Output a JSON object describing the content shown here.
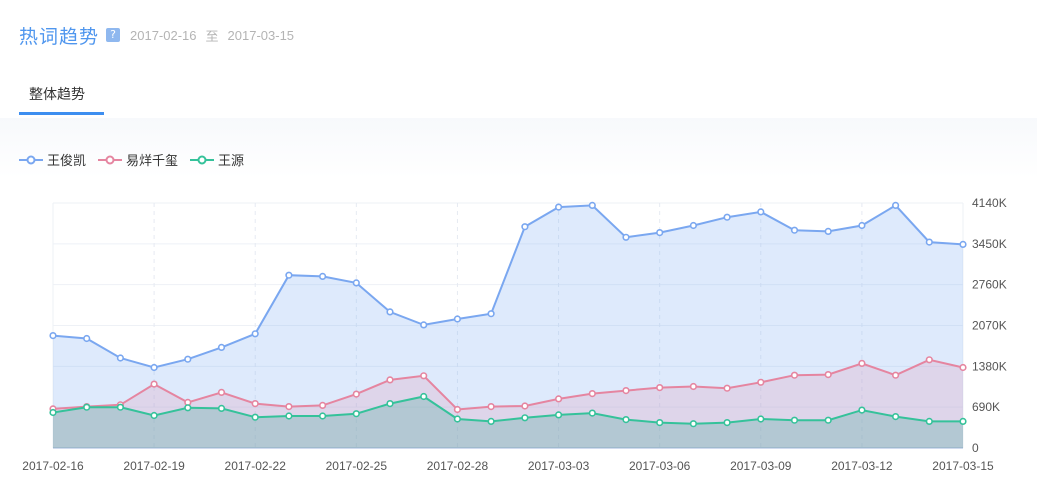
{
  "header": {
    "title": "热词趋势",
    "help_icon": "?",
    "start_date": "2017-02-16",
    "separator": "至",
    "end_date": "2017-03-15"
  },
  "tabs": [
    {
      "label": "整体趋势",
      "active": true
    }
  ],
  "colors": {
    "series": [
      "#7aa7f0",
      "#e585a0",
      "#35c29a"
    ],
    "tab_accent": "#3d8ef0",
    "title": "#4f96ee"
  },
  "chart_data": {
    "type": "area",
    "x": [
      "2017-02-16",
      "2017-02-17",
      "2017-02-18",
      "2017-02-19",
      "2017-02-20",
      "2017-02-21",
      "2017-02-22",
      "2017-02-23",
      "2017-02-24",
      "2017-02-25",
      "2017-02-26",
      "2017-02-27",
      "2017-02-28",
      "2017-03-01",
      "2017-03-02",
      "2017-03-03",
      "2017-03-04",
      "2017-03-05",
      "2017-03-06",
      "2017-03-07",
      "2017-03-08",
      "2017-03-09",
      "2017-03-10",
      "2017-03-11",
      "2017-03-12",
      "2017-03-13",
      "2017-03-14",
      "2017-03-15"
    ],
    "x_tick_labels": [
      "2017-02-16",
      "2017-02-19",
      "2017-02-22",
      "2017-02-25",
      "2017-02-28",
      "2017-03-03",
      "2017-03-06",
      "2017-03-09",
      "2017-03-12",
      "2017-03-15"
    ],
    "y_tick_labels": [
      "0",
      "690K",
      "1380K",
      "2070K",
      "2760K",
      "3450K",
      "4140K"
    ],
    "ylim": [
      0,
      4140
    ],
    "y_unit": "K",
    "y_axis_position": "right",
    "grid": true,
    "legend_position": "top-left",
    "series": [
      {
        "name": "王俊凯",
        "values": [
          1900,
          1850,
          1520,
          1360,
          1500,
          1700,
          1930,
          2920,
          2900,
          2790,
          2300,
          2080,
          2180,
          2270,
          3740,
          4070,
          4100,
          3560,
          3640,
          3760,
          3900,
          3990,
          3680,
          3660,
          3760,
          4100,
          3480,
          3440
        ]
      },
      {
        "name": "易烊千玺",
        "values": [
          660,
          700,
          730,
          1080,
          770,
          940,
          750,
          700,
          720,
          910,
          1150,
          1220,
          650,
          700,
          710,
          830,
          920,
          970,
          1020,
          1040,
          1010,
          1110,
          1230,
          1240,
          1430,
          1230,
          1490,
          1360
        ]
      },
      {
        "name": "王源",
        "values": [
          600,
          690,
          690,
          550,
          680,
          670,
          520,
          540,
          540,
          580,
          750,
          870,
          490,
          450,
          510,
          560,
          590,
          480,
          430,
          410,
          430,
          490,
          470,
          470,
          640,
          530,
          450,
          450
        ]
      }
    ]
  }
}
